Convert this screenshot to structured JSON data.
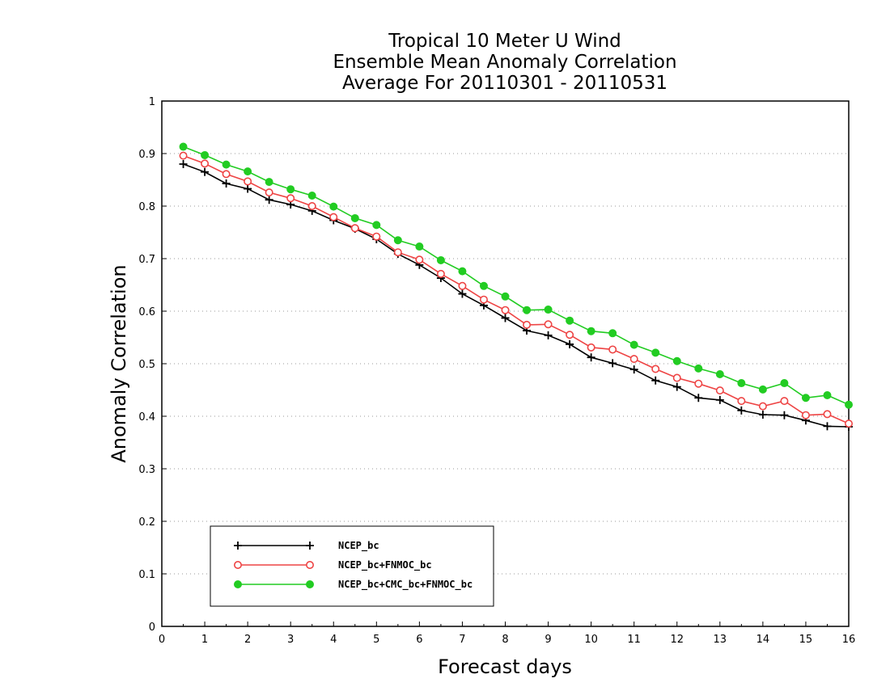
{
  "chart_data": {
    "type": "line",
    "title": [
      "Tropical 10 Meter U Wind",
      "Ensemble Mean Anomaly Correlation",
      "Average For 20110301 - 20110531"
    ],
    "xlabel": "Forecast days",
    "ylabel": "Anomaly Correlation",
    "xlim": [
      0,
      16
    ],
    "ylim": [
      0,
      1
    ],
    "x_ticks": [
      "0",
      "1",
      "2",
      "3",
      "4",
      "5",
      "6",
      "7",
      "8",
      "9",
      "10",
      "11",
      "12",
      "13",
      "14",
      "15",
      "16"
    ],
    "y_ticks": [
      "0",
      "0.1",
      "0.2",
      "0.3",
      "0.4",
      "0.5",
      "0.6",
      "0.7",
      "0.8",
      "0.9",
      "1"
    ],
    "grid": "horizontal dotted",
    "legend_position": "bottom-left",
    "x": [
      0.5,
      1,
      1.5,
      2,
      2.5,
      3,
      3.5,
      4,
      4.5,
      5,
      5.5,
      6,
      6.5,
      7,
      7.5,
      8,
      8.5,
      9,
      9.5,
      10,
      10.5,
      11,
      11.5,
      12,
      12.5,
      13,
      13.5,
      14,
      14.5,
      15,
      15.5,
      16
    ],
    "series": [
      {
        "name": "NCEP_bc",
        "color": "#000000",
        "marker": "plus",
        "values": [
          0.88,
          0.865,
          0.843,
          0.833,
          0.812,
          0.803,
          0.791,
          0.773,
          0.757,
          0.737,
          0.709,
          0.688,
          0.663,
          0.633,
          0.611,
          0.587,
          0.563,
          0.554,
          0.537,
          0.512,
          0.501,
          0.489,
          0.468,
          0.456,
          0.435,
          0.431,
          0.411,
          0.403,
          0.402,
          0.392,
          0.381,
          0.38
        ]
      },
      {
        "name": "NCEP_bc+FNMOC_bc",
        "color": "#ee4444",
        "marker": "open-circle",
        "values": [
          0.896,
          0.881,
          0.861,
          0.847,
          0.826,
          0.815,
          0.8,
          0.779,
          0.758,
          0.742,
          0.712,
          0.698,
          0.671,
          0.648,
          0.622,
          0.602,
          0.574,
          0.575,
          0.555,
          0.531,
          0.527,
          0.509,
          0.49,
          0.473,
          0.462,
          0.449,
          0.429,
          0.419,
          0.429,
          0.402,
          0.404,
          0.386
        ]
      },
      {
        "name": "NCEP_bc+CMC_bc+FNMOC_bc",
        "color": "#22cc22",
        "marker": "filled-circle",
        "values": [
          0.913,
          0.897,
          0.879,
          0.866,
          0.846,
          0.832,
          0.82,
          0.799,
          0.777,
          0.764,
          0.735,
          0.723,
          0.697,
          0.676,
          0.648,
          0.628,
          0.602,
          0.603,
          0.582,
          0.562,
          0.558,
          0.536,
          0.521,
          0.505,
          0.491,
          0.48,
          0.463,
          0.451,
          0.463,
          0.435,
          0.44,
          0.422
        ]
      }
    ]
  }
}
